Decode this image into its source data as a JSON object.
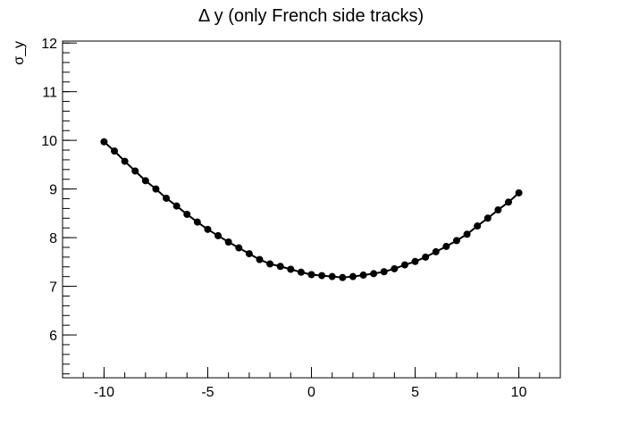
{
  "chart_data": {
    "type": "line",
    "title": "Δ y (only French side tracks)",
    "y_label": "σ_y",
    "x": [
      -10,
      -9.5,
      -9,
      -8.5,
      -8,
      -7.5,
      -7,
      -6.5,
      -6,
      -5.5,
      -5,
      -4.5,
      -4,
      -3.5,
      -3,
      -2.5,
      -2,
      -1.5,
      -1,
      -0.5,
      0,
      0.5,
      1,
      1.5,
      2,
      2.5,
      3,
      3.5,
      4,
      4.5,
      5,
      5.5,
      6,
      6.5,
      7,
      7.5,
      8,
      8.5,
      9,
      9.5,
      10
    ],
    "series": [
      {
        "color": "#000000",
        "values": [
          9.97,
          9.78,
          9.57,
          9.37,
          9.17,
          9.0,
          8.81,
          8.65,
          8.48,
          8.32,
          8.17,
          8.04,
          7.91,
          7.79,
          7.67,
          7.55,
          7.46,
          7.41,
          7.35,
          7.29,
          7.24,
          7.22,
          7.2,
          7.18,
          7.2,
          7.23,
          7.26,
          7.3,
          7.36,
          7.44,
          7.51,
          7.6,
          7.71,
          7.82,
          7.94,
          8.07,
          8.24,
          8.4,
          8.57,
          8.73,
          8.92
        ]
      }
    ],
    "xlim": [
      -12,
      12
    ],
    "xticks": [
      -10,
      -5,
      0,
      5,
      10
    ],
    "ylim": [
      5.12,
      12.04
    ],
    "yticks": [
      6,
      7,
      8,
      9,
      10,
      11,
      12
    ],
    "grid": false
  }
}
